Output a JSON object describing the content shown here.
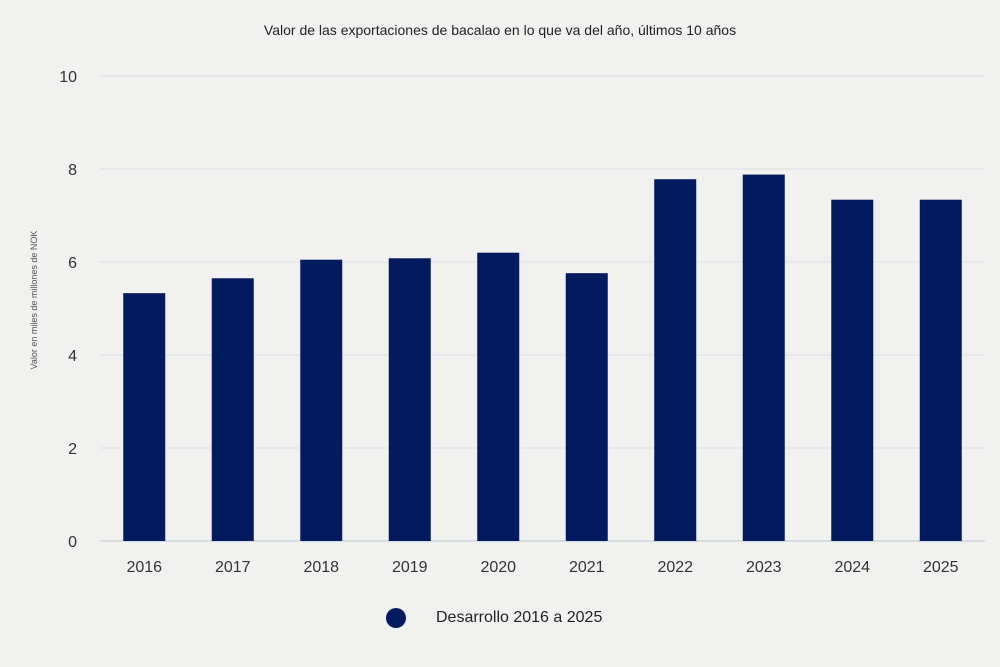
{
  "chart_data": {
    "type": "bar",
    "title": "Valor de las exportaciones de bacalao en lo que va del año, últimos 10 años",
    "xlabel": "",
    "ylabel": "Valor en miles de millones de NOK",
    "categories": [
      "2016",
      "2017",
      "2018",
      "2019",
      "2020",
      "2021",
      "2022",
      "2023",
      "2024",
      "2025"
    ],
    "series": [
      {
        "name": "Desarrollo 2016 a 2025",
        "values": [
          5.33,
          5.65,
          6.05,
          6.08,
          6.2,
          5.76,
          7.78,
          7.88,
          7.34,
          7.34
        ]
      }
    ],
    "ylim": [
      0,
      10
    ],
    "yticks": [
      0,
      2,
      4,
      6,
      8,
      10
    ],
    "grid": true,
    "legend_position": "bottom-center"
  },
  "colors": {
    "bar": "#021b5e",
    "grid": "#dcdfe3",
    "axis": "#b9c6d6",
    "tick_text": "#333333"
  }
}
